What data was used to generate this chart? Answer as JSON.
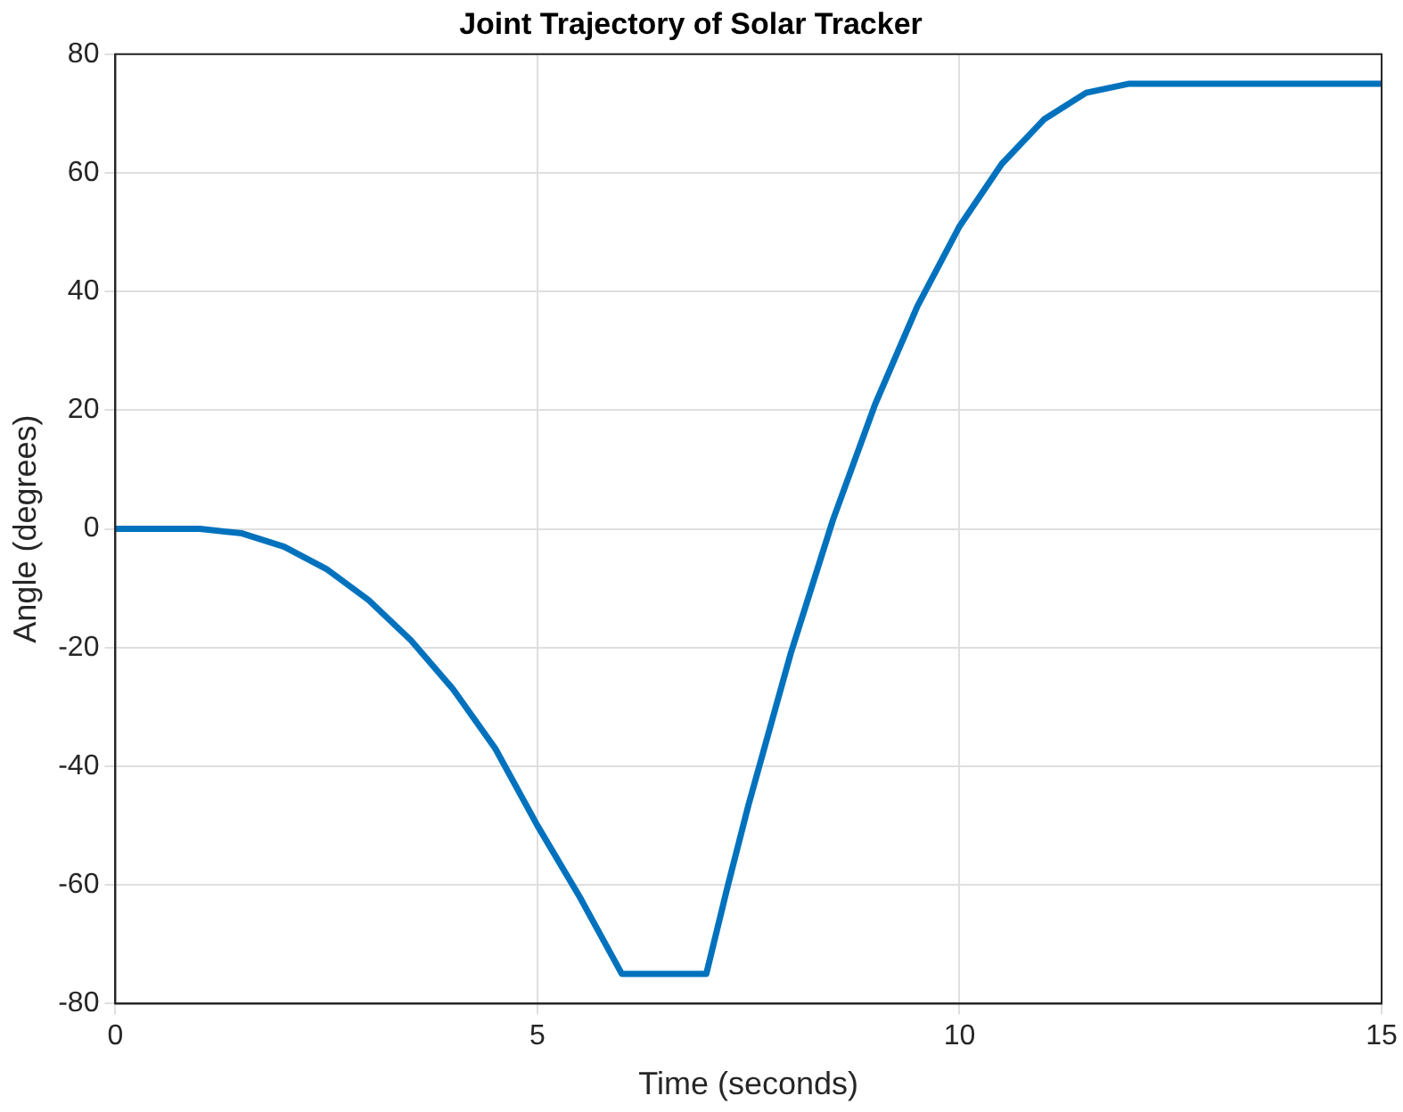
{
  "chart_data": {
    "type": "line",
    "title": "Joint Trajectory of Solar Tracker",
    "xlabel": "Time (seconds)",
    "ylabel": "Angle (degrees)",
    "x": [
      0,
      0.5,
      1,
      1.5,
      2,
      2.5,
      3,
      3.5,
      4,
      4.5,
      5,
      5.5,
      6,
      6.5,
      7,
      7.25,
      7.5,
      8,
      8.5,
      9,
      9.5,
      10,
      10.5,
      11,
      11.5,
      12,
      13,
      14,
      15
    ],
    "series": [
      {
        "color": "#0072bd",
        "values": [
          0,
          0,
          0,
          -0.75,
          -3,
          -6.75,
          -12,
          -18.75,
          -27,
          -37,
          -50,
          -62,
          -75,
          -75,
          -75,
          -60.4,
          -46.5,
          -21,
          1.5,
          21,
          37.5,
          51,
          61.5,
          69,
          73.5,
          75,
          75,
          75,
          75
        ]
      }
    ],
    "xlim": [
      0,
      15
    ],
    "xticks": [
      0,
      5,
      10,
      15
    ],
    "ylim": [
      -80,
      80
    ],
    "yticks": [
      -80,
      -60,
      -40,
      -20,
      0,
      20,
      40,
      60,
      80
    ],
    "grid": true,
    "legend": false,
    "marker": "none",
    "line_style": "solid"
  }
}
